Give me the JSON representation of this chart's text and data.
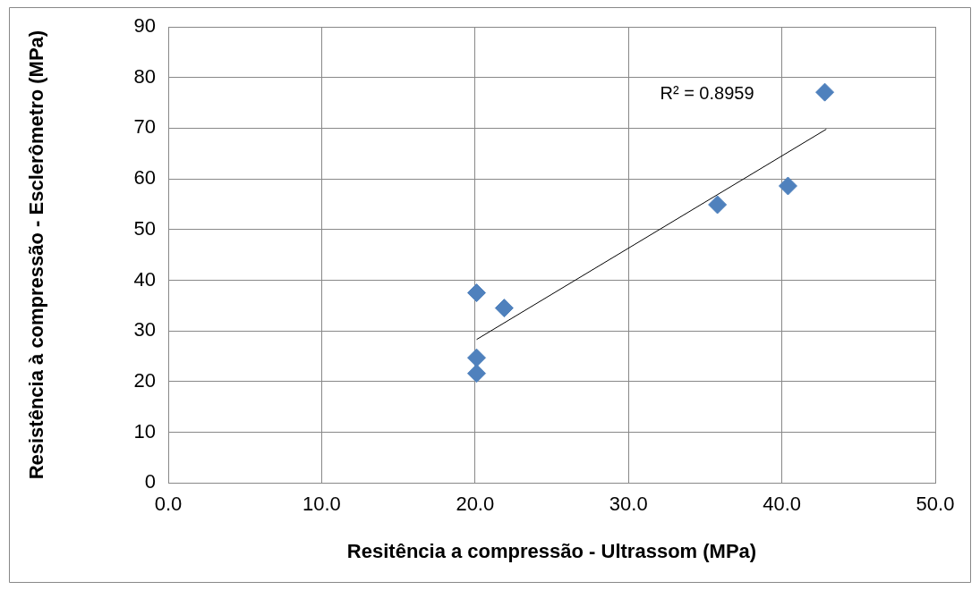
{
  "chart_data": {
    "type": "scatter",
    "xlabel": "Resitência a compressão - Ultrassom (MPa)",
    "ylabel": "Resistência à compressão - Esclerômetro (MPa)",
    "xlim": [
      0,
      50
    ],
    "xticks": [
      {
        "value": 0,
        "label": "0.0"
      },
      {
        "value": 10,
        "label": "10.0"
      },
      {
        "value": 20,
        "label": "20.0"
      },
      {
        "value": 30,
        "label": "30.0"
      },
      {
        "value": 40,
        "label": "40.0"
      },
      {
        "value": 50,
        "label": "50.0"
      }
    ],
    "ylim": [
      0,
      90
    ],
    "yticks": [
      0,
      10,
      20,
      30,
      40,
      50,
      60,
      70,
      80,
      90
    ],
    "grid": true,
    "legend": false,
    "marker": "diamond",
    "series": [
      {
        "color": "#4f81bd",
        "x": [
          20.1,
          21.9,
          20.1,
          20.1,
          35.8,
          40.4,
          42.8
        ],
        "values": [
          37.5,
          34.5,
          24.7,
          21.6,
          54.9,
          58.6,
          77.1
        ]
      },
      {
        "type": "line",
        "color": "#000000",
        "marker": "none",
        "line_style": "solid",
        "x": [
          20.1,
          42.9
        ],
        "values": [
          28.3,
          69.8
        ]
      }
    ],
    "annotations": [
      "R² = 0.8959"
    ]
  }
}
